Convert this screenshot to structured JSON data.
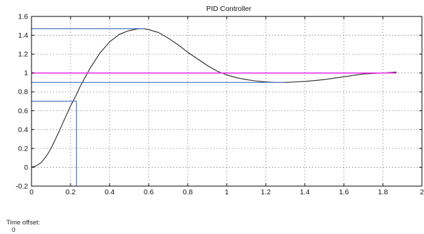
{
  "chart_data": {
    "type": "line",
    "title": "PID Controller",
    "xlabel": "",
    "ylabel": "",
    "xlim": [
      0,
      2
    ],
    "ylim": [
      -0.2,
      1.6
    ],
    "x_ticks": [
      0,
      0.2,
      0.4,
      0.6,
      0.8,
      1,
      1.2,
      1.4,
      1.6,
      1.8,
      2
    ],
    "x_tick_labels": [
      "0",
      "0.2",
      "0.4",
      "0.6",
      "0.8",
      "1",
      "1.2",
      "1.4",
      "1.6",
      "1.8",
      "2"
    ],
    "y_ticks": [
      -0.2,
      0,
      0.2,
      0.4,
      0.6,
      0.8,
      1,
      1.2,
      1.4,
      1.6
    ],
    "y_tick_labels": [
      "-0.2",
      "0",
      "0.2",
      "0.4",
      "0.6",
      "0.8",
      "1",
      "1.2",
      "1.4",
      "1.6"
    ],
    "grid": true,
    "series": [
      {
        "color": "#222222",
        "x": [
          0,
          0.02,
          0.05,
          0.08,
          0.1,
          0.13,
          0.15,
          0.18,
          0.2,
          0.23,
          0.25,
          0.3,
          0.35,
          0.4,
          0.45,
          0.5,
          0.55,
          0.58,
          0.6,
          0.65,
          0.7,
          0.75,
          0.8,
          0.85,
          0.9,
          0.95,
          1.0,
          1.05,
          1.1,
          1.15,
          1.2,
          1.25,
          1.3,
          1.35,
          1.4,
          1.5,
          1.6,
          1.7,
          1.8,
          1.87
        ],
        "y": [
          0,
          0.01,
          0.05,
          0.13,
          0.2,
          0.33,
          0.42,
          0.56,
          0.65,
          0.77,
          0.86,
          1.05,
          1.21,
          1.33,
          1.41,
          1.45,
          1.47,
          1.468,
          1.46,
          1.43,
          1.37,
          1.3,
          1.22,
          1.15,
          1.08,
          1.02,
          0.98,
          0.95,
          0.93,
          0.915,
          0.905,
          0.9,
          0.9,
          0.905,
          0.91,
          0.93,
          0.96,
          0.99,
          1.0,
          1.01
        ]
      },
      {
        "color": "#ee33ee",
        "x": [
          0,
          1.87
        ],
        "y": [
          1,
          1
        ]
      }
    ],
    "reference_lines": [
      {
        "color": "#4472c4",
        "points": [
          [
            0,
            1.47
          ],
          [
            0.58,
            1.47
          ]
        ]
      },
      {
        "color": "#4472c4",
        "points": [
          [
            0,
            0.9
          ],
          [
            1.3,
            0.9
          ]
        ]
      },
      {
        "color": "#4472c4",
        "points": [
          [
            0,
            0.7
          ],
          [
            0.23,
            0.7
          ],
          [
            0.23,
            -0.2
          ]
        ]
      }
    ]
  },
  "footer": {
    "time_offset_label": "Time offset:",
    "time_offset_value": "0"
  }
}
